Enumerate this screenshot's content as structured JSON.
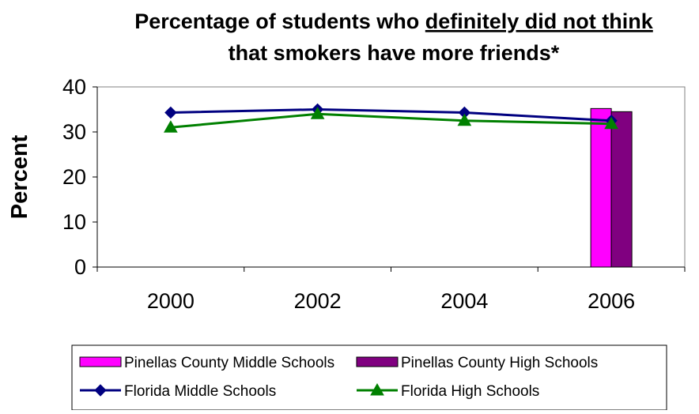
{
  "chart_data": {
    "type": "bar+line",
    "title_lines": [
      [
        "Percentage of students who ",
        "definitely did not think"
      ],
      [
        "that smokers have more friends*"
      ]
    ],
    "ylabel": "Percent",
    "xlabel": "",
    "ylim": [
      0,
      40
    ],
    "yticks": [
      0,
      10,
      20,
      30,
      40
    ],
    "categories": [
      "2000",
      "2002",
      "2004",
      "2006"
    ],
    "grid": false,
    "legend_position": "bottom",
    "bar_series": [
      {
        "name": "Pinellas County Middle Schools",
        "color": "#FF00FF",
        "values": [
          null,
          null,
          null,
          35.2
        ]
      },
      {
        "name": "Pinellas County High Schools",
        "color": "#800080",
        "values": [
          null,
          null,
          null,
          34.5
        ]
      }
    ],
    "line_series": [
      {
        "name": "Florida Middle Schools",
        "color": "#000080",
        "marker": "diamond",
        "values": [
          34.3,
          35.0,
          34.3,
          32.5
        ]
      },
      {
        "name": "Florida High Schools",
        "color": "#008000",
        "marker": "triangle",
        "values": [
          31.0,
          34.0,
          32.5,
          31.8
        ]
      }
    ]
  }
}
